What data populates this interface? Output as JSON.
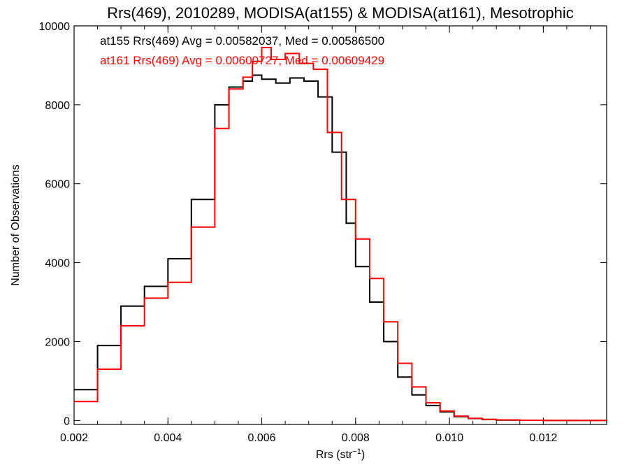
{
  "chart_data": {
    "type": "line",
    "title": "Rrs(469), 2010289, MODISA(at155) & MODISA(at161), Mesotrophic",
    "xlabel": "Rrs (str",
    "xlabel_sup": "−1",
    "xlabel_suffix": ")",
    "ylabel": "Number of Observations",
    "xlim": [
      0.002,
      0.01335
    ],
    "ylim": [
      -100,
      10000
    ],
    "xticks": [
      0.002,
      0.004,
      0.006,
      0.008,
      0.01,
      0.012
    ],
    "xtick_labels": [
      "0.002",
      "0.004",
      "0.006",
      "0.008",
      "0.010",
      "0.012"
    ],
    "yticks": [
      0,
      2000,
      4000,
      6000,
      8000,
      10000
    ],
    "ytick_labels": [
      "0",
      "2000",
      "4000",
      "6000",
      "8000",
      "10000"
    ],
    "legend_placement": "top-left",
    "series": [
      {
        "name": "at155",
        "color": "#000000",
        "legend": "at155 Rrs(469) Avg = 0.00582037, Med = 0.00586500",
        "x": [
          0.002,
          0.0025,
          0.003,
          0.0035,
          0.004,
          0.0045,
          0.005,
          0.0053,
          0.0056,
          0.0058,
          0.006,
          0.0063,
          0.0066,
          0.0069,
          0.0072,
          0.0075,
          0.0078,
          0.008,
          0.0083,
          0.0086,
          0.0089,
          0.0092,
          0.0095,
          0.0098,
          0.0101,
          0.0104,
          0.0107,
          0.011,
          0.0115,
          0.012,
          0.0125,
          0.013,
          0.01335
        ],
        "y": [
          780,
          1900,
          2900,
          3400,
          4100,
          5600,
          8000,
          8450,
          8600,
          8750,
          8650,
          8550,
          8680,
          8600,
          8200,
          6800,
          5000,
          3900,
          3000,
          2000,
          1100,
          650,
          380,
          220,
          100,
          50,
          25,
          12,
          6,
          3,
          2,
          1,
          1
        ]
      },
      {
        "name": "at161",
        "color": "#ff0000",
        "legend": "at161 Rrs(469) Avg = 0.00600727, Med = 0.00609429",
        "x": [
          0.002,
          0.0025,
          0.003,
          0.0035,
          0.004,
          0.0045,
          0.005,
          0.0053,
          0.0056,
          0.0058,
          0.006,
          0.0062,
          0.0065,
          0.0068,
          0.0071,
          0.0074,
          0.0077,
          0.008,
          0.0083,
          0.0086,
          0.0089,
          0.0092,
          0.0095,
          0.0098,
          0.0101,
          0.0104,
          0.0107,
          0.011,
          0.0115,
          0.012,
          0.0125,
          0.013,
          0.01335
        ],
        "y": [
          480,
          1300,
          2400,
          3100,
          3500,
          4900,
          7400,
          8400,
          8700,
          9100,
          9450,
          9150,
          9300,
          9050,
          8900,
          7300,
          5600,
          4600,
          3600,
          2500,
          1450,
          850,
          450,
          240,
          110,
          55,
          28,
          14,
          7,
          3,
          2,
          1,
          1
        ]
      }
    ]
  }
}
